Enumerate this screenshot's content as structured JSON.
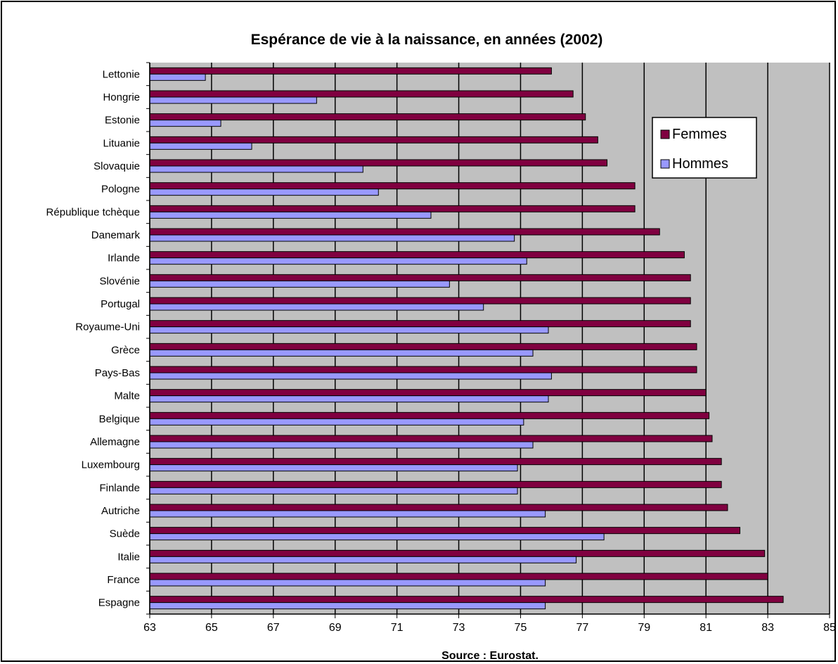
{
  "chart_data": {
    "type": "bar",
    "orientation": "horizontal",
    "title": "Espérance de vie à la naissance, en années (2002)",
    "xlabel": "Source : Eurostat.",
    "xlim": [
      63,
      85
    ],
    "xticks": [
      "63",
      "65",
      "67",
      "69",
      "71",
      "73",
      "75",
      "77",
      "79",
      "81",
      "83",
      "85"
    ],
    "grid": true,
    "legend_position": "right",
    "categories": [
      "Lettonie",
      "Hongrie",
      "Estonie",
      "Lituanie",
      "Slovaquie",
      "Pologne",
      "République tchèque",
      "Danemark",
      "Irlande",
      "Slovénie",
      "Portugal",
      "Royaume-Uni",
      "Grèce",
      "Pays-Bas",
      "Malte",
      "Belgique",
      "Allemagne",
      "Luxembourg",
      "Finlande",
      "Autriche",
      "Suède",
      "Italie",
      "France",
      "Espagne"
    ],
    "series": [
      {
        "name": "Femmes",
        "color": "#800040",
        "values": [
          76.0,
          76.7,
          77.1,
          77.5,
          77.8,
          78.7,
          78.7,
          79.5,
          80.3,
          80.5,
          80.5,
          80.5,
          80.7,
          80.7,
          81.0,
          81.1,
          81.2,
          81.5,
          81.5,
          81.7,
          82.1,
          82.9,
          83.0,
          83.5
        ]
      },
      {
        "name": "Hommes",
        "color": "#9999ff",
        "values": [
          64.8,
          68.4,
          65.3,
          66.3,
          69.9,
          70.4,
          72.1,
          74.8,
          75.2,
          72.7,
          73.8,
          75.9,
          75.4,
          76.0,
          75.9,
          75.1,
          75.4,
          74.9,
          74.9,
          75.8,
          77.7,
          76.8,
          75.8,
          75.8
        ]
      }
    ]
  }
}
